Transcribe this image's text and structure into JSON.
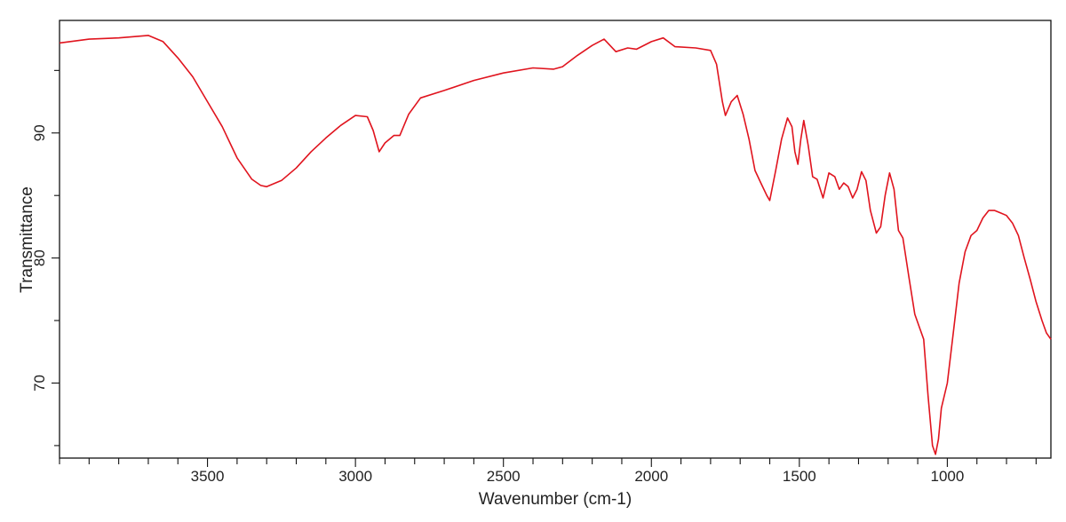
{
  "chart_data": {
    "type": "line",
    "title": "",
    "xlabel": "Wavenumber (cm-1)",
    "ylabel": "Transmittance",
    "x_reversed": true,
    "xlim": [
      4000,
      650
    ],
    "ylim": [
      64,
      99
    ],
    "grid": false,
    "line_color": "#e0141e",
    "x_ticks": [
      {
        "value": 3500,
        "label": "3500"
      },
      {
        "value": 3000,
        "label": "3000"
      },
      {
        "value": 2500,
        "label": "2500"
      },
      {
        "value": 2000,
        "label": "2000"
      },
      {
        "value": 1500,
        "label": "1500"
      },
      {
        "value": 1000,
        "label": "1000"
      }
    ],
    "x_minor_step": 100,
    "y_ticks": [
      {
        "value": 90,
        "label": "90"
      },
      {
        "value": 80,
        "label": "80"
      },
      {
        "value": 70,
        "label": "70"
      }
    ],
    "y_minor_ticks": [
      65,
      75,
      85,
      95
    ],
    "series": [
      {
        "points": [
          [
            4000,
            97.2
          ],
          [
            3900,
            97.5
          ],
          [
            3800,
            97.6
          ],
          [
            3700,
            97.8
          ],
          [
            3650,
            97.3
          ],
          [
            3600,
            96.0
          ],
          [
            3550,
            94.5
          ],
          [
            3500,
            92.5
          ],
          [
            3450,
            90.5
          ],
          [
            3400,
            88.0
          ],
          [
            3350,
            86.3
          ],
          [
            3320,
            85.8
          ],
          [
            3300,
            85.7
          ],
          [
            3250,
            86.2
          ],
          [
            3200,
            87.2
          ],
          [
            3150,
            88.5
          ],
          [
            3100,
            89.6
          ],
          [
            3050,
            90.6
          ],
          [
            3000,
            91.4
          ],
          [
            2960,
            91.3
          ],
          [
            2940,
            90.2
          ],
          [
            2920,
            88.5
          ],
          [
            2900,
            89.2
          ],
          [
            2870,
            89.8
          ],
          [
            2850,
            89.8
          ],
          [
            2820,
            91.5
          ],
          [
            2780,
            92.8
          ],
          [
            2700,
            93.4
          ],
          [
            2600,
            94.2
          ],
          [
            2500,
            94.8
          ],
          [
            2400,
            95.2
          ],
          [
            2330,
            95.1
          ],
          [
            2300,
            95.3
          ],
          [
            2250,
            96.2
          ],
          [
            2200,
            97.0
          ],
          [
            2160,
            97.5
          ],
          [
            2120,
            96.5
          ],
          [
            2080,
            96.8
          ],
          [
            2050,
            96.7
          ],
          [
            2000,
            97.3
          ],
          [
            1960,
            97.6
          ],
          [
            1920,
            96.9
          ],
          [
            1850,
            96.8
          ],
          [
            1800,
            96.6
          ],
          [
            1780,
            95.5
          ],
          [
            1760,
            92.5
          ],
          [
            1750,
            91.4
          ],
          [
            1730,
            92.5
          ],
          [
            1710,
            93.0
          ],
          [
            1690,
            91.5
          ],
          [
            1670,
            89.5
          ],
          [
            1650,
            87.0
          ],
          [
            1630,
            86.0
          ],
          [
            1610,
            85.0
          ],
          [
            1600,
            84.6
          ],
          [
            1580,
            87.0
          ],
          [
            1560,
            89.5
          ],
          [
            1540,
            91.2
          ],
          [
            1525,
            90.5
          ],
          [
            1515,
            88.5
          ],
          [
            1505,
            87.5
          ],
          [
            1495,
            89.5
          ],
          [
            1485,
            91.0
          ],
          [
            1470,
            89.0
          ],
          [
            1455,
            86.5
          ],
          [
            1440,
            86.3
          ],
          [
            1420,
            84.8
          ],
          [
            1400,
            86.8
          ],
          [
            1380,
            86.5
          ],
          [
            1365,
            85.5
          ],
          [
            1350,
            86.0
          ],
          [
            1335,
            85.7
          ],
          [
            1320,
            84.8
          ],
          [
            1305,
            85.5
          ],
          [
            1290,
            86.9
          ],
          [
            1275,
            86.2
          ],
          [
            1260,
            83.8
          ],
          [
            1240,
            82.0
          ],
          [
            1225,
            82.5
          ],
          [
            1210,
            85.0
          ],
          [
            1195,
            86.8
          ],
          [
            1180,
            85.5
          ],
          [
            1165,
            82.2
          ],
          [
            1150,
            81.6
          ],
          [
            1130,
            78.5
          ],
          [
            1110,
            75.5
          ],
          [
            1095,
            74.5
          ],
          [
            1080,
            73.5
          ],
          [
            1065,
            69.0
          ],
          [
            1050,
            65.0
          ],
          [
            1040,
            64.3
          ],
          [
            1030,
            65.5
          ],
          [
            1020,
            68.0
          ],
          [
            1000,
            70.0
          ],
          [
            980,
            74.0
          ],
          [
            960,
            78.0
          ],
          [
            940,
            80.5
          ],
          [
            920,
            81.8
          ],
          [
            900,
            82.2
          ],
          [
            880,
            83.2
          ],
          [
            860,
            83.8
          ],
          [
            840,
            83.8
          ],
          [
            820,
            83.6
          ],
          [
            800,
            83.4
          ],
          [
            780,
            82.8
          ],
          [
            760,
            81.8
          ],
          [
            740,
            80.0
          ],
          [
            720,
            78.3
          ],
          [
            700,
            76.5
          ],
          [
            680,
            75.0
          ],
          [
            665,
            74.0
          ],
          [
            650,
            73.5
          ]
        ]
      }
    ]
  }
}
